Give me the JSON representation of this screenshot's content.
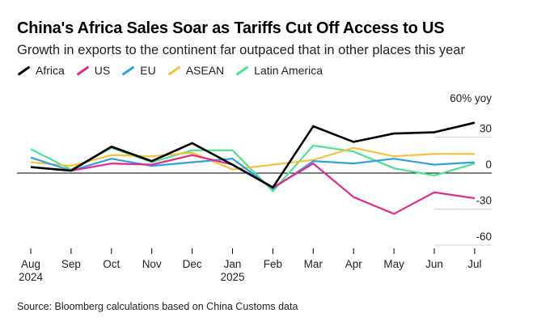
{
  "title": "China's Africa Sales Soar as Tariffs Cut Off Access to US",
  "subtitle": "Growth in exports to the continent far outpaced that in other places this year",
  "source": "Source: Bloomberg calculations based on China Customs data",
  "chart_data": {
    "type": "line",
    "categories": [
      "Aug",
      "Sep",
      "Oct",
      "Nov",
      "Dec",
      "Jan",
      "Feb",
      "Mar",
      "Apr",
      "May",
      "Jun",
      "Jul"
    ],
    "year_labels": [
      "2024",
      "",
      "",
      "",
      "",
      "2025",
      "",
      "",
      "",
      "",
      "",
      ""
    ],
    "y_ticks": [
      60,
      30,
      0,
      -30,
      -60
    ],
    "y_tick_labels": [
      "60% yoy",
      "30",
      "0",
      "-30",
      "-60"
    ],
    "ylim": [
      -60,
      60
    ],
    "xlabel": "",
    "ylabel": "% yoy",
    "series": [
      {
        "name": "Africa",
        "color": "#000000",
        "values": [
          5,
          2,
          22,
          10,
          25,
          7,
          -12,
          39,
          26,
          33,
          34,
          42
        ]
      },
      {
        "name": "US",
        "color": "#e5298b",
        "values": [
          5,
          2,
          8,
          7,
          15,
          7,
          -12,
          8,
          -20,
          -34,
          -16,
          -21
        ]
      },
      {
        "name": "EU",
        "color": "#2ea0e0",
        "values": [
          13,
          2,
          12,
          6,
          9,
          12,
          -13,
          10,
          8,
          12,
          7,
          9
        ]
      },
      {
        "name": "ASEAN",
        "color": "#f5c13e",
        "values": [
          9,
          6,
          15,
          14,
          17,
          3,
          7,
          11,
          21,
          14,
          16,
          16
        ]
      },
      {
        "name": "Latin America",
        "color": "#4be38f",
        "values": [
          20,
          3,
          21,
          9,
          19,
          19,
          -15,
          23,
          18,
          4,
          -2,
          8
        ]
      }
    ]
  }
}
